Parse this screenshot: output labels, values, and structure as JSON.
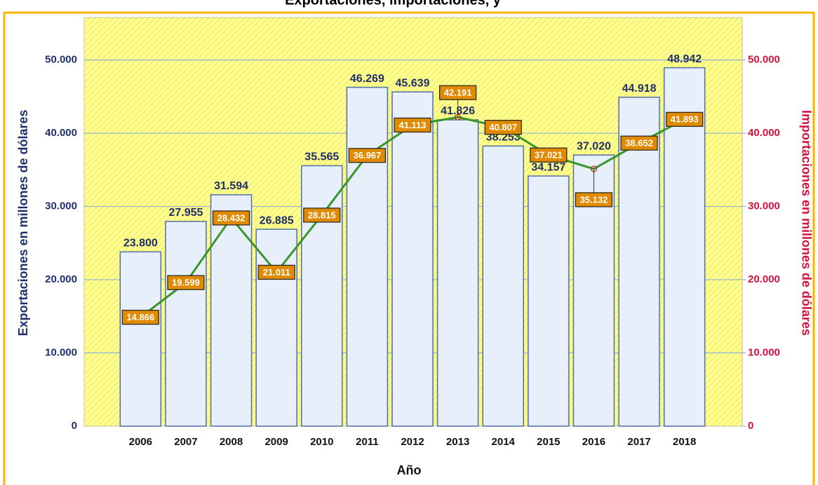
{
  "chart_data": {
    "type": "bar",
    "title": "Exportaciones, importaciones, y",
    "x_label": "Año",
    "y_label": "Exportaciones en millones de dólares",
    "y2_label": "Importaciones en millones de dólares",
    "categories": [
      "2006",
      "2007",
      "2008",
      "2009",
      "2010",
      "2011",
      "2012",
      "2013",
      "2014",
      "2015",
      "2016",
      "2017",
      "2018"
    ],
    "series": [
      {
        "name": "Exportaciones",
        "type": "bar",
        "color": "#e6effa",
        "stroke": "#4f6fa8",
        "label_color": "#1f2f6e",
        "values": [
          23800,
          27955,
          31594,
          26885,
          35565,
          46269,
          45639,
          41826,
          38253,
          34157,
          37020,
          44918,
          48942
        ],
        "value_labels": [
          "23.800",
          "27.955",
          "31.594",
          "26.885",
          "35.565",
          "46.269",
          "45.639",
          "41.826",
          "38.253",
          "34.157",
          "37.020",
          "44.918",
          "48.942"
        ]
      },
      {
        "name": "Importaciones",
        "type": "line",
        "axis": "y2",
        "color": "#3a962a",
        "label_color": "#e08a00",
        "values": [
          14866,
          19599,
          28432,
          21011,
          28815,
          36967,
          41113,
          42191,
          40807,
          37021,
          35132,
          38652,
          41893
        ],
        "value_labels": [
          "14.866",
          "19.599",
          "28.432",
          "21.011",
          "28.815",
          "36.967",
          "41.113",
          "42.191",
          "40.807",
          "37.021",
          "35.132",
          "38.652",
          "41.893"
        ]
      }
    ],
    "ylim": [
      0,
      55800
    ],
    "yticks": [
      0,
      {
        "value": 10000,
        "label": "10.000"
      },
      {
        "value": 20000,
        "label": "20.000"
      },
      {
        "value": 30000,
        "label": "30.000"
      },
      {
        "value": 40000,
        "label": "40.000"
      },
      {
        "value": 50000,
        "label": "50.000"
      }
    ],
    "y2lim": [
      0,
      55800
    ],
    "y2ticks": [
      0,
      {
        "value": 10000,
        "label": "10.000"
      },
      {
        "value": 20000,
        "label": "20.000"
      },
      {
        "value": 30000,
        "label": "30.000"
      },
      {
        "value": 40000,
        "label": "40.000"
      },
      {
        "value": 50000,
        "label": "50.000"
      }
    ],
    "grid": true,
    "y_color": "#1f2f6e",
    "y2_color": "#d4103c"
  }
}
